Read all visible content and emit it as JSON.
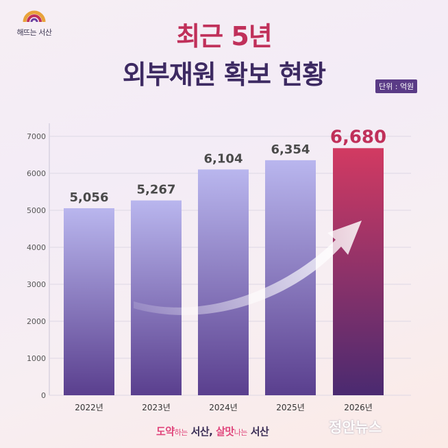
{
  "logo": {
    "text": "해뜨는 서산"
  },
  "title": {
    "line1": "최근 5년",
    "line2": "외부재원 확보 현황"
  },
  "unit_label": "단위 : 억원",
  "chart_data": {
    "type": "bar",
    "categories": [
      "2022년",
      "2023년",
      "2024년",
      "2025년",
      "2026년"
    ],
    "values": [
      5056,
      5267,
      6104,
      6354,
      6680
    ],
    "value_labels": [
      "5,056",
      "5,267",
      "6,104",
      "6,354",
      "6,680"
    ],
    "ylim": [
      0,
      7000
    ],
    "yticks": [
      0,
      1000,
      2000,
      3000,
      4000,
      5000,
      6000,
      7000
    ],
    "grid": true,
    "highlight_index": 4,
    "colors": {
      "bar_top": "#b9b6ee",
      "bar_bottom": "#5a3f8e",
      "highlight_top": "#d23a62",
      "highlight_bottom": "#4a2a70",
      "value_label": "#4a4a4a",
      "highlight_label": "#c0305a"
    }
  },
  "footer": {
    "part1_accent": "도약",
    "part1_small": "하는",
    "part1_end": " 서산, ",
    "part2_accent": "살맛",
    "part2_small": "나는",
    "part2_end": " 서산"
  },
  "watermark": "정안뉴스"
}
